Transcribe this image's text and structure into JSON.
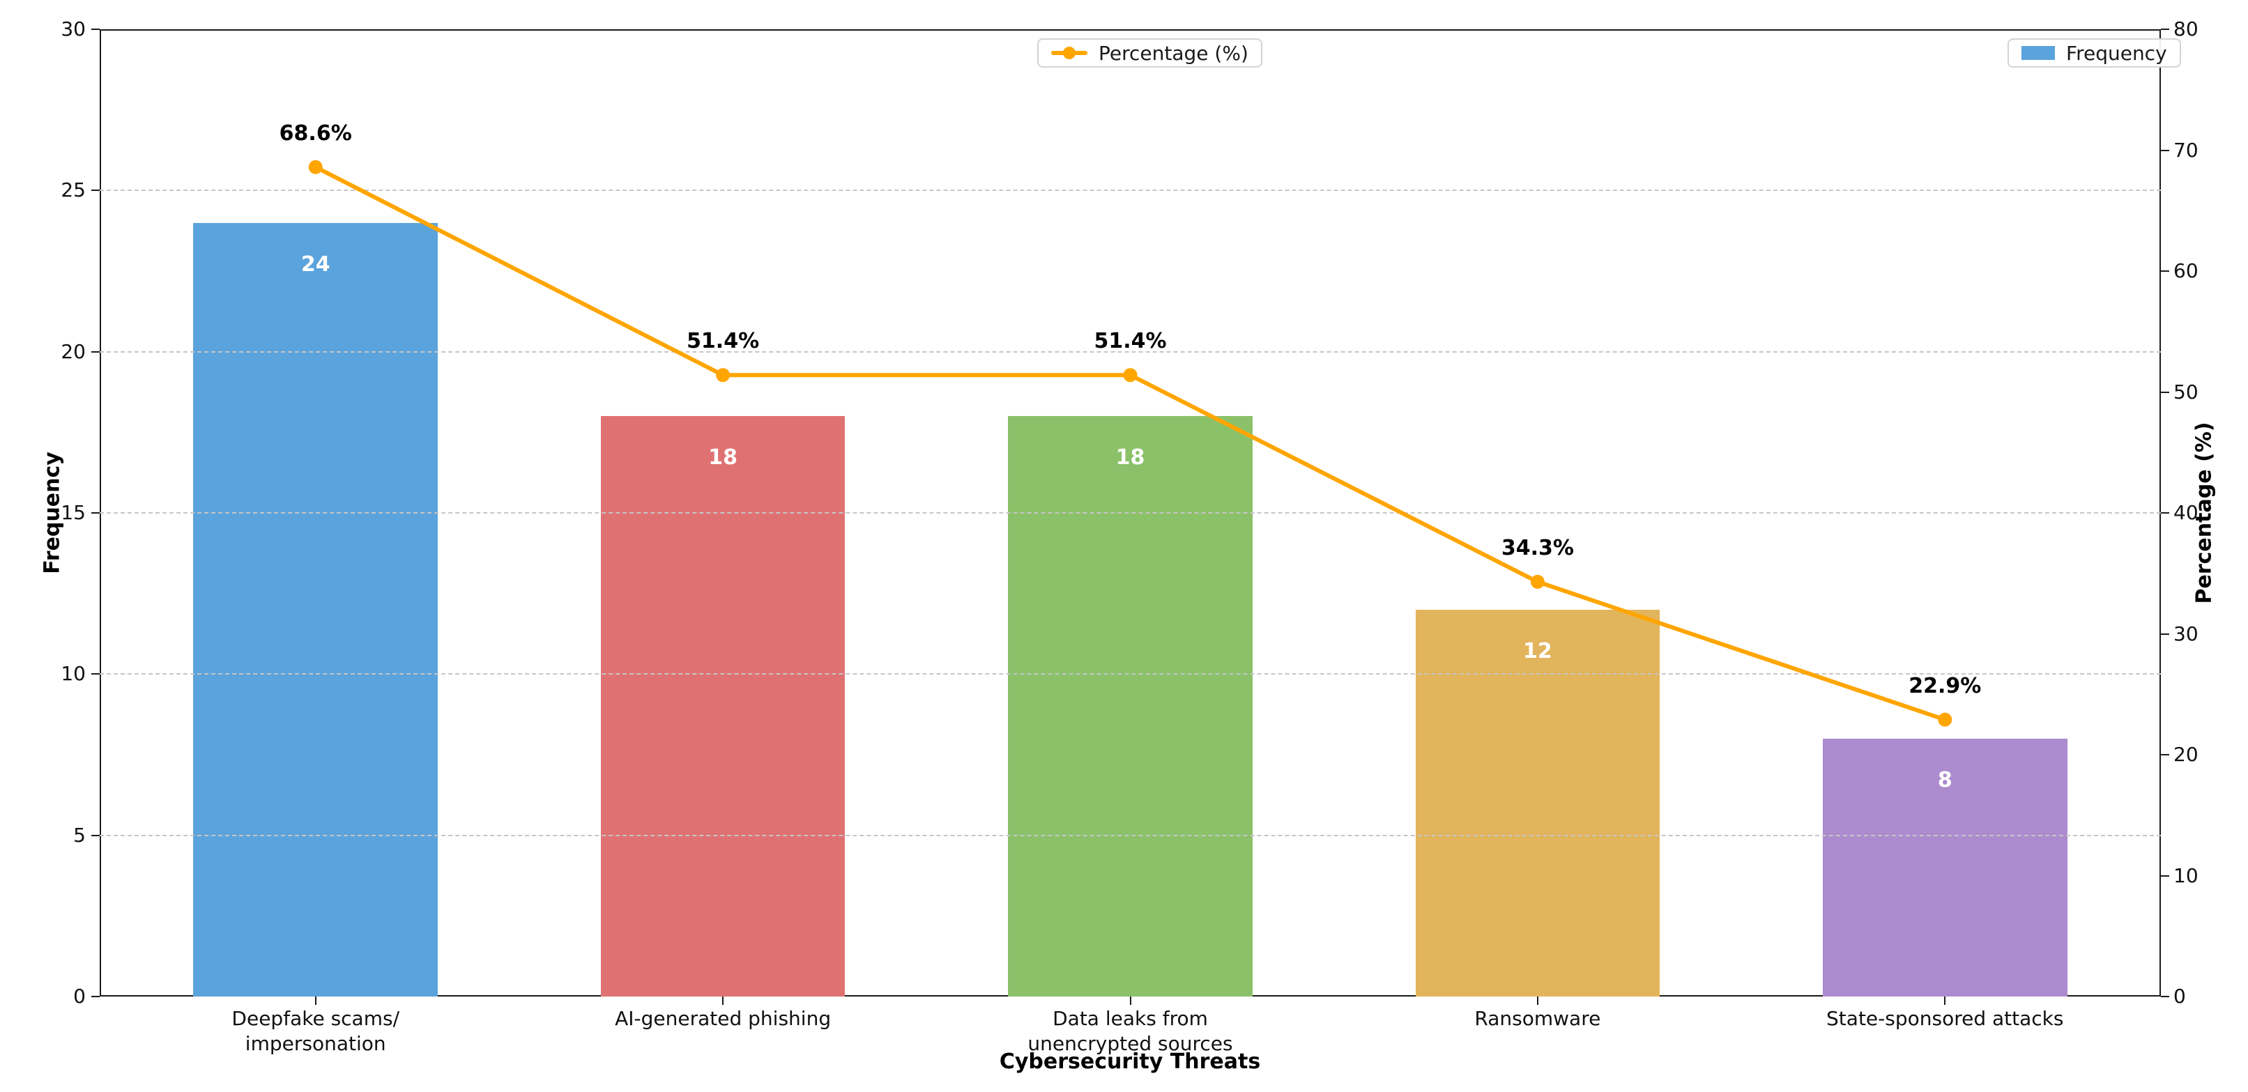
{
  "chart_data": {
    "type": "bar",
    "subtype": "pareto-combo-bar-line",
    "xlabel": "Cybersecurity Threats",
    "categories": [
      "Deepfake scams/impersonation",
      "AI-generated phishing",
      "Data leaks from unencrypted sources",
      "Ransomware",
      "State-sponsored attacks"
    ],
    "category_display_lines": [
      [
        "Deepfake scams/",
        "impersonation"
      ],
      [
        "AI-generated phishing"
      ],
      [
        "Data leaks from",
        "unencrypted sources"
      ],
      [
        "Ransomware"
      ],
      [
        "State-sponsored attacks"
      ]
    ],
    "series": [
      {
        "name": "Frequency",
        "kind": "bar",
        "axis": "left",
        "values": [
          24,
          18,
          18,
          12,
          8
        ],
        "bar_colors": [
          "#5BA3DC",
          "#E07173",
          "#8BC169",
          "#E2B45B",
          "#AC8BCE"
        ],
        "value_label_color": "#ffffff"
      },
      {
        "name": "Percentage (%)",
        "kind": "line",
        "axis": "right",
        "values": [
          68.6,
          51.4,
          51.4,
          34.3,
          22.9
        ],
        "point_labels": [
          "68.6%",
          "51.4%",
          "51.4%",
          "34.3%",
          "22.9%"
        ],
        "color": "#FFA500"
      }
    ],
    "left_axis": {
      "label": "Frequency",
      "min": 0,
      "max": 30,
      "ticks": [
        0,
        5,
        10,
        15,
        20,
        25,
        30
      ]
    },
    "right_axis": {
      "label": "Percentage (%)",
      "min": 0,
      "max": 80,
      "ticks": [
        0,
        10,
        20,
        30,
        40,
        50,
        60,
        70,
        80
      ]
    },
    "grid": {
      "show": true,
      "style": "dashed",
      "color": "#c6c6c6",
      "at_left_ticks": [
        5,
        10,
        15,
        20,
        25
      ]
    },
    "legends": [
      {
        "label": "Percentage (%)",
        "marker": "line-dot",
        "color": "#FFA500",
        "position": "top-center"
      },
      {
        "label": "Frequency",
        "marker": "square",
        "color": "#5BA3DC",
        "position": "top-right"
      }
    ],
    "legend_position": "top",
    "grid_on": true
  }
}
